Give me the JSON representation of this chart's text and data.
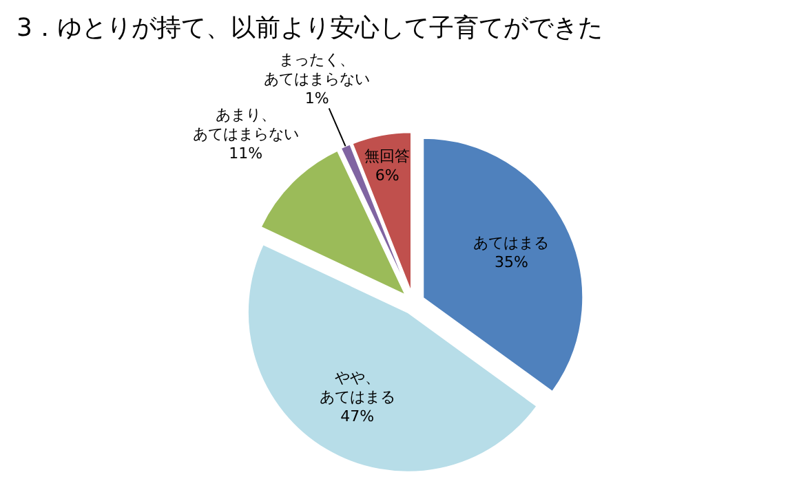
{
  "chart_data": {
    "type": "pie",
    "title": "3．ゆとりが持て、以前より安心して子育てができた",
    "categories": [
      "あてはまる",
      "やや、あてはまる",
      "あまり、あてはまらない",
      "まったく、あてはまらない",
      "無回答"
    ],
    "values": [
      35,
      47,
      11,
      1,
      6
    ],
    "colors": [
      "#4f81bd",
      "#b7dde8",
      "#9bbb59",
      "#8064a2",
      "#c0504d"
    ],
    "value_labels": [
      "35%",
      "47%",
      "11%",
      "1%",
      "6%"
    ]
  }
}
